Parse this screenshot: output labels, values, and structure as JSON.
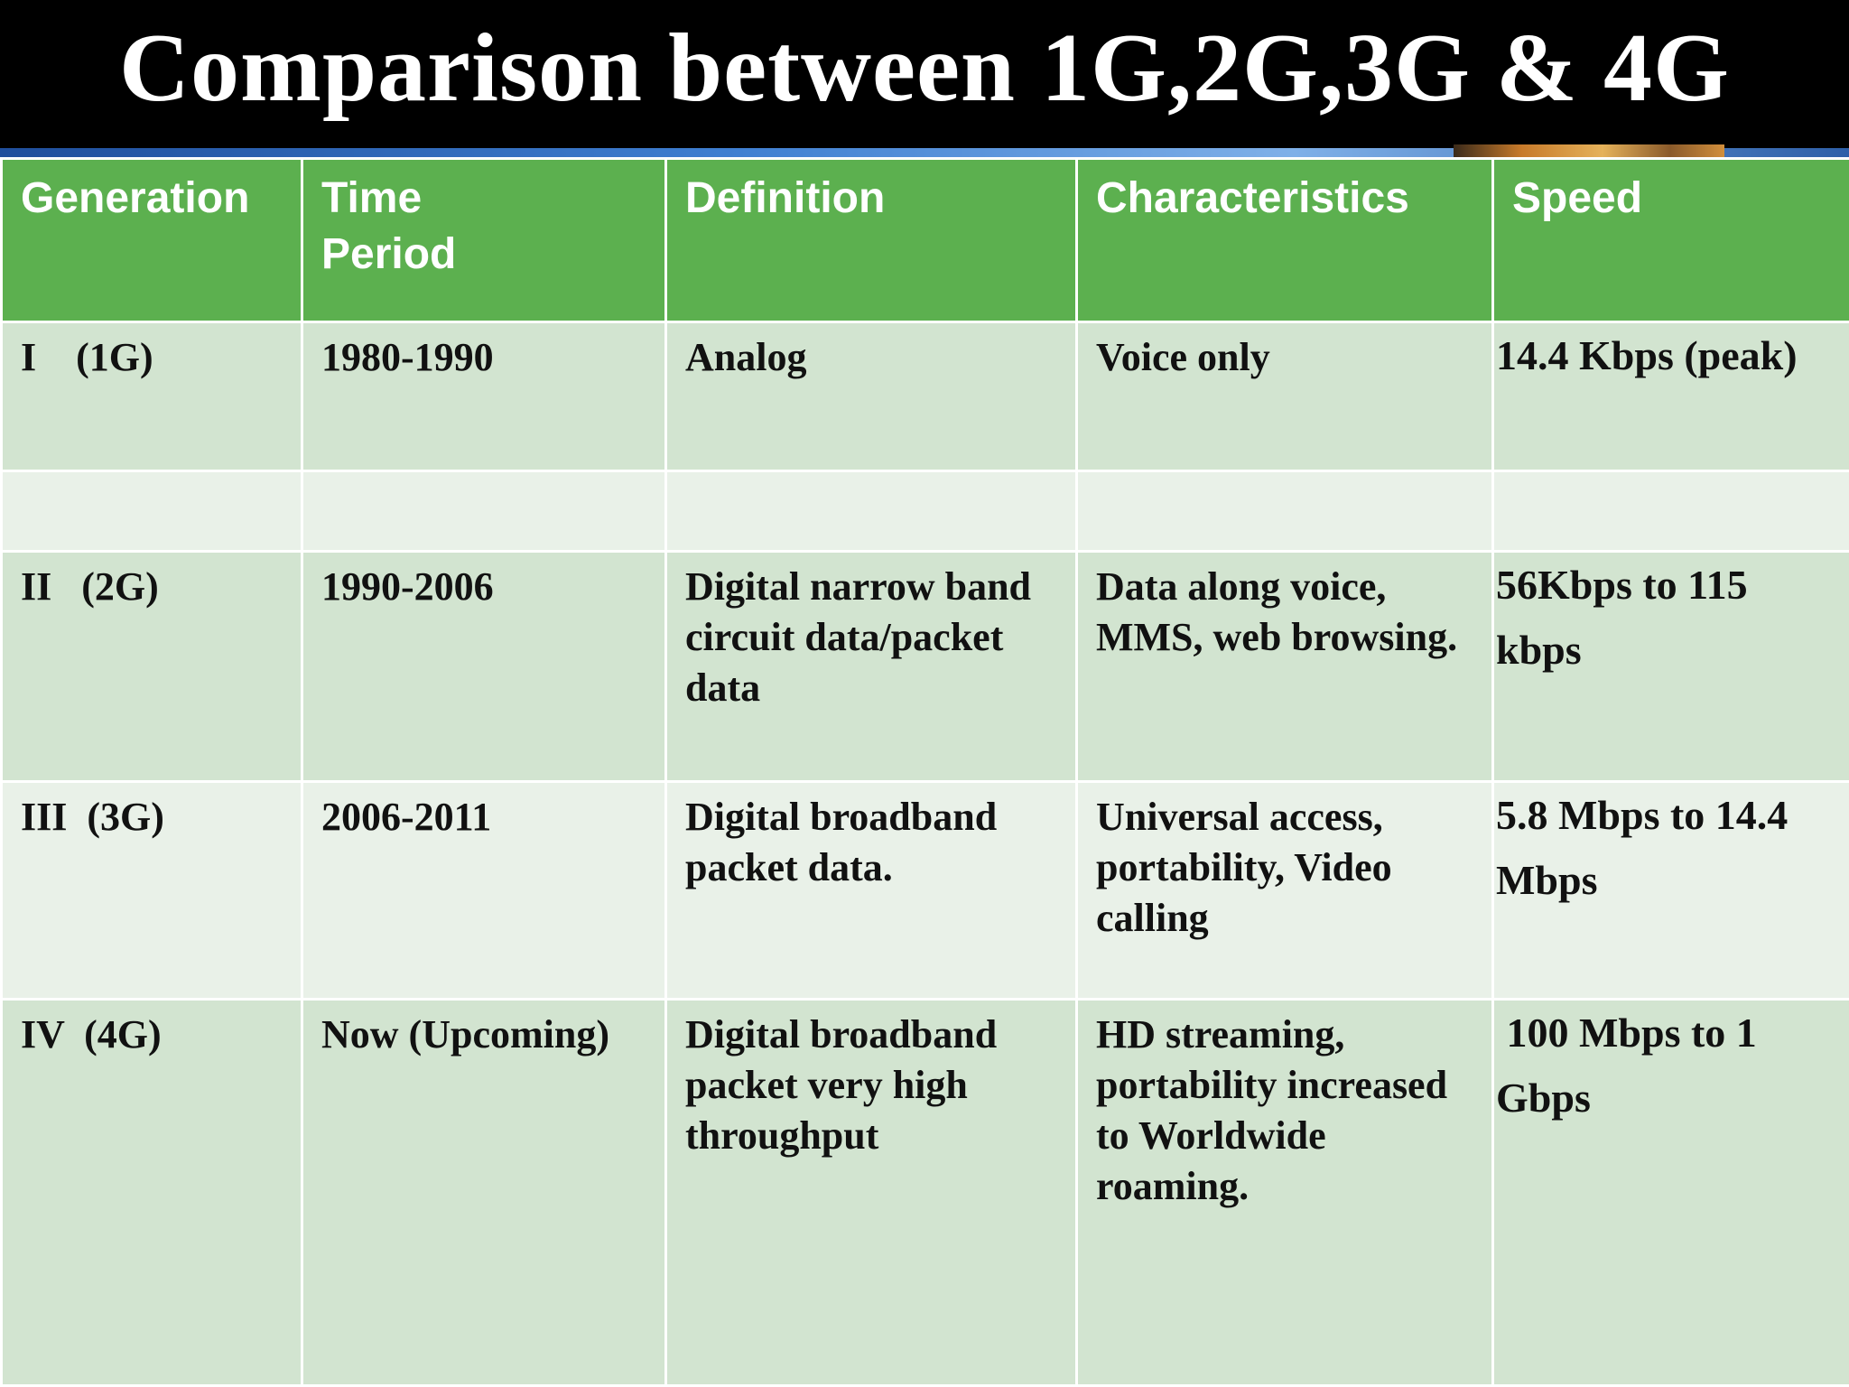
{
  "slide": {
    "title": "Comparison between 1G,2G,3G & 4G"
  },
  "table": {
    "headers": [
      "Generation",
      "Time Period",
      "Definition",
      "Characteristics",
      "Speed"
    ],
    "rows": [
      {
        "generation": "I    (1G)",
        "time_period": "1980-1990",
        "definition": "Analog",
        "characteristics": "Voice only",
        "speed": "14.4 Kbps (peak)"
      },
      {
        "generation": "",
        "time_period": "",
        "definition": "",
        "characteristics": "",
        "speed": ""
      },
      {
        "generation": "II   (2G)",
        "time_period": "1990-2006",
        "definition": "Digital narrow band circuit data/packet data",
        "characteristics": "Data along voice, MMS, web browsing.",
        "speed": "56Kbps to 115 kbps"
      },
      {
        "generation": "III  (3G)",
        "time_period": "2006-2011",
        "definition": "Digital broadband packet data.",
        "characteristics": "Universal access, portability, Video calling",
        "speed": "5.8 Mbps to 14.4 Mbps"
      },
      {
        "generation": "IV  (4G)",
        "time_period": "Now (Upcoming)",
        "definition": "Digital broadband packet very high throughput",
        "characteristics": "HD streaming, portability increased to Worldwide roaming.",
        "speed": " 100 Mbps to 1 Gbps"
      }
    ]
  },
  "colors": {
    "title_bar": "#000000",
    "header_bg": "#5cb04f",
    "row_dark": "#d2e4d0",
    "row_light": "#e9f1e8"
  }
}
